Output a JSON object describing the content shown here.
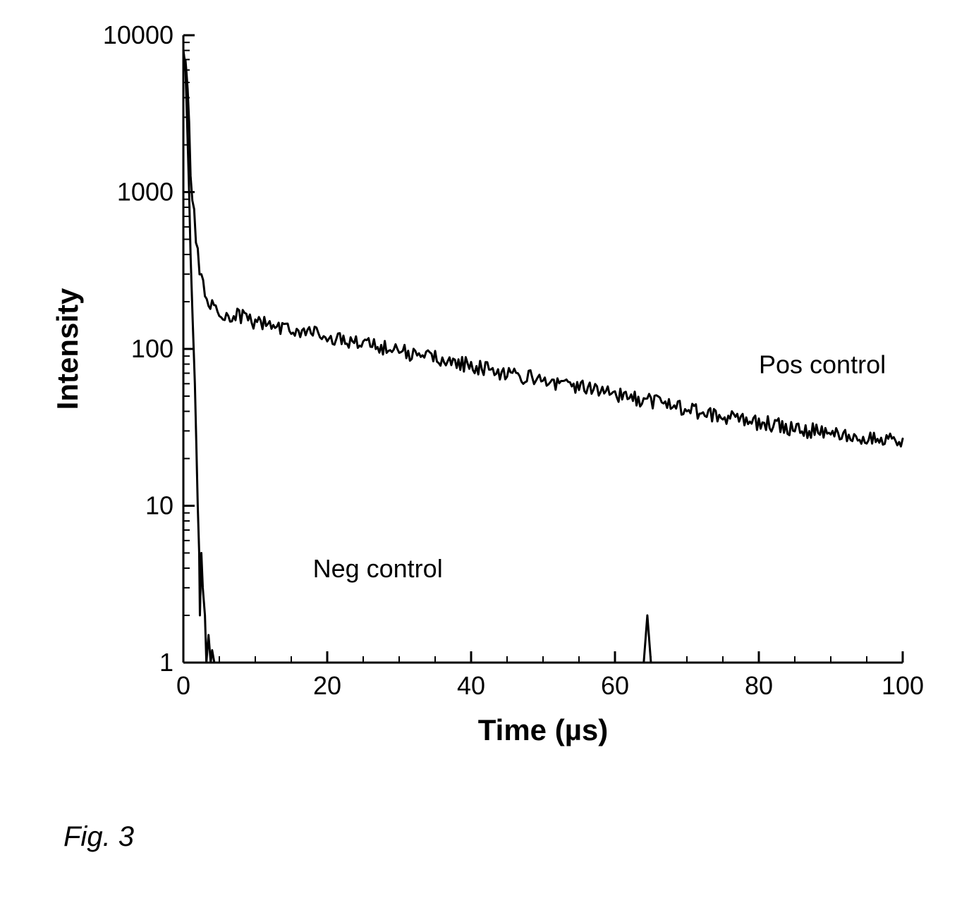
{
  "caption": "Fig. 3",
  "chart": {
    "type": "line",
    "background_color": "#ffffff",
    "axis_color": "#000000",
    "line_width_axis": 3,
    "line_width_series": 3,
    "xlabel": "Time (µs)",
    "ylabel": "Intensity",
    "label_fontsize": 42,
    "tick_fontsize": 36,
    "xlim": [
      0,
      100
    ],
    "xticks": [
      0,
      20,
      40,
      60,
      80,
      100
    ],
    "yscale": "log",
    "ylim": [
      1,
      10000
    ],
    "yticks": [
      1,
      10,
      100,
      1000,
      10000
    ],
    "minor_ticks": true,
    "series": [
      {
        "name": "Pos control",
        "label_text": "Pos control",
        "label_pos_x": 80,
        "label_pos_y": 70,
        "color": "#000000",
        "noise_amplitude_log": 0.05,
        "data": [
          [
            0.0,
            8000
          ],
          [
            0.3,
            7000
          ],
          [
            0.6,
            4500
          ],
          [
            1.0,
            1400
          ],
          [
            1.5,
            700
          ],
          [
            2.0,
            400
          ],
          [
            2.5,
            280
          ],
          [
            3.0,
            220
          ],
          [
            4.0,
            190
          ],
          [
            5.0,
            175
          ],
          [
            7.0,
            165
          ],
          [
            10.0,
            150
          ],
          [
            15.0,
            135
          ],
          [
            20.0,
            120
          ],
          [
            25.0,
            108
          ],
          [
            30.0,
            97
          ],
          [
            35.0,
            87
          ],
          [
            40.0,
            78
          ],
          [
            45.0,
            70
          ],
          [
            50.0,
            63
          ],
          [
            55.0,
            57
          ],
          [
            60.0,
            51
          ],
          [
            65.0,
            46
          ],
          [
            70.0,
            41
          ],
          [
            75.0,
            37
          ],
          [
            80.0,
            34
          ],
          [
            85.0,
            31
          ],
          [
            90.0,
            29
          ],
          [
            95.0,
            27
          ],
          [
            100.0,
            26
          ]
        ]
      },
      {
        "name": "Neg control",
        "label_text": "Neg control",
        "label_pos_x": 18,
        "label_pos_y": 3.5,
        "color": "#000000",
        "noise_amplitude_log": 0,
        "data": [
          [
            0.0,
            8000
          ],
          [
            0.3,
            6000
          ],
          [
            0.5,
            3000
          ],
          [
            0.8,
            1000
          ],
          [
            1.0,
            400
          ],
          [
            1.3,
            150
          ],
          [
            1.6,
            60
          ],
          [
            1.8,
            25
          ],
          [
            2.0,
            10
          ],
          [
            2.2,
            5
          ],
          [
            2.3,
            2
          ],
          [
            2.5,
            5
          ],
          [
            2.7,
            3
          ],
          [
            3.0,
            2
          ],
          [
            3.2,
            1
          ],
          [
            3.5,
            1.5
          ],
          [
            3.8,
            1
          ],
          [
            4.0,
            1.2
          ],
          [
            4.3,
            1
          ],
          [
            64.0,
            1
          ],
          [
            64.5,
            2
          ],
          [
            65.0,
            1
          ]
        ],
        "gaps_after_index": [
          18
        ]
      }
    ]
  }
}
